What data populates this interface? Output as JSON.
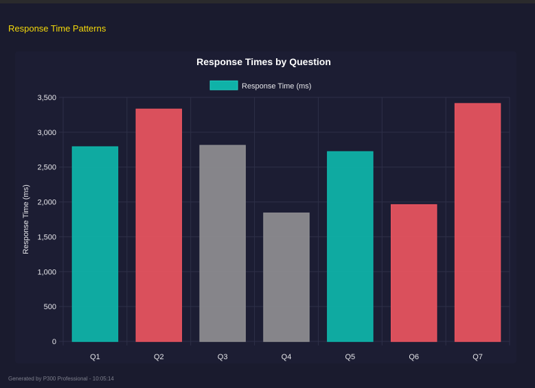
{
  "section_title": "Response Time Patterns",
  "footer": "Generated by P300 Professional - 10:05:14",
  "chart_data": {
    "type": "bar",
    "title": "Response Times by Question",
    "xlabel": "",
    "ylabel": "Response Time (ms)",
    "legend": {
      "label": "Response Time (ms)",
      "position": "top",
      "color": "#14b8a6"
    },
    "categories": [
      "Q1",
      "Q2",
      "Q3",
      "Q4",
      "Q5",
      "Q6",
      "Q7"
    ],
    "series": [
      {
        "name": "Response Time (ms)",
        "values": [
          2790,
          3330,
          2810,
          1840,
          2720,
          1960,
          3410
        ]
      }
    ],
    "bar_colors": [
      "#0fb2a8",
      "#e5535f",
      "#8c8b8f",
      "#8c8b8f",
      "#0fb2a8",
      "#e5535f",
      "#e5535f"
    ],
    "ylim": [
      0,
      3500
    ],
    "yticks": [
      "0",
      "500",
      "1,000",
      "1,500",
      "2,000",
      "2,500",
      "3,000",
      "3,500"
    ],
    "grid": true
  }
}
